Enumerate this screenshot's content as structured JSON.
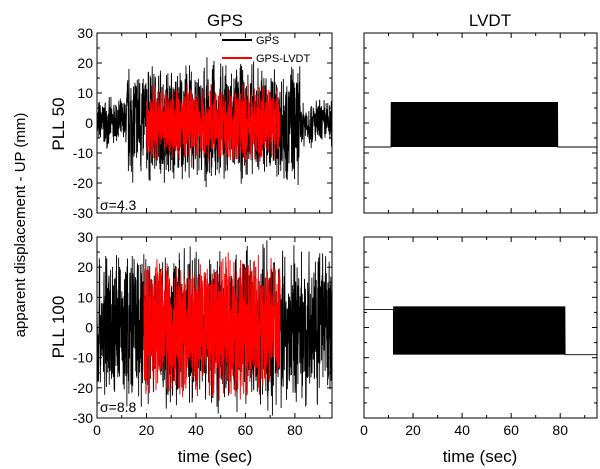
{
  "column_titles": [
    "GPS",
    "LVDT"
  ],
  "row_labels": [
    "PLL 50",
    "PLL 100"
  ],
  "ylabel": "apparent displacement - UP (mm)",
  "xlabel": "time (sec)",
  "colors": {
    "gps": "#000000",
    "gps_lvdt": "#ff0000",
    "lvdt": "#000000"
  },
  "chart_data": [
    {
      "type": "line",
      "panel": "GPS / PLL 50",
      "xlim": [
        0,
        95
      ],
      "ylim": [
        -30,
        30
      ],
      "xticks": [
        0,
        20,
        40,
        60,
        80
      ],
      "yticks": [
        -30,
        -20,
        -10,
        0,
        10,
        20,
        30
      ],
      "legend": {
        "placement": "top-right",
        "entries": [
          "GPS",
          "GPS-LVDT"
        ]
      },
      "annotation": "σ=4.3",
      "series": [
        {
          "name": "GPS",
          "color": "#000000",
          "baseline_amplitude": 9,
          "burst": {
            "x_start": 12,
            "x_end": 82,
            "amplitude": 22
          }
        },
        {
          "name": "GPS-LVDT",
          "color": "#ff0000",
          "x_range": [
            20,
            74
          ],
          "amplitude": 14
        }
      ]
    },
    {
      "type": "line",
      "panel": "LVDT / PLL 50",
      "xlim": [
        0,
        95
      ],
      "ylim": [
        -30,
        30
      ],
      "xticks": [
        0,
        20,
        40,
        60,
        80
      ],
      "yticks": [
        -30,
        -20,
        -10,
        0,
        10,
        20,
        30
      ],
      "series": [
        {
          "name": "LVDT",
          "color": "#000000",
          "baseline": -8,
          "burst": {
            "x_start": 11,
            "x_end": 79,
            "low": -8,
            "high": 7
          }
        }
      ]
    },
    {
      "type": "line",
      "panel": "GPS / PLL 100",
      "xlim": [
        0,
        95
      ],
      "ylim": [
        -30,
        30
      ],
      "xticks": [
        0,
        20,
        40,
        60,
        80
      ],
      "yticks": [
        -30,
        -20,
        -10,
        0,
        10,
        20,
        30
      ],
      "annotation": "σ=8.8",
      "series": [
        {
          "name": "GPS",
          "color": "#000000",
          "baseline_amplitude": 28,
          "burst": {
            "x_start": 13,
            "x_end": 76,
            "amplitude": 30
          }
        },
        {
          "name": "GPS-LVDT",
          "color": "#ff0000",
          "x_range": [
            19,
            74
          ],
          "amplitude": 26
        }
      ]
    },
    {
      "type": "line",
      "panel": "LVDT / PLL 100",
      "xlim": [
        0,
        95
      ],
      "ylim": [
        -30,
        30
      ],
      "xticks": [
        0,
        20,
        40,
        60,
        80
      ],
      "yticks": [
        -30,
        -20,
        -10,
        0,
        10,
        20,
        30
      ],
      "series": [
        {
          "name": "LVDT",
          "color": "#000000",
          "baseline_start": 6,
          "baseline_end": -9,
          "burst": {
            "x_start": 12,
            "x_end": 82,
            "low": -9,
            "high": 7
          }
        }
      ]
    }
  ]
}
